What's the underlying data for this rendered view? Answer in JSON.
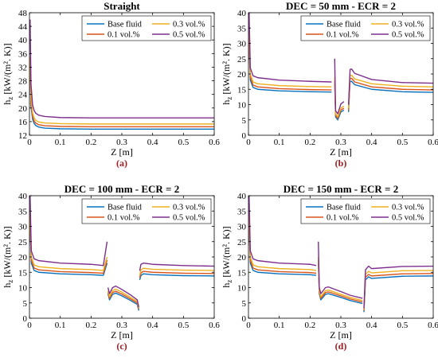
{
  "colors": {
    "base": "#0a72bd",
    "v01": "#d9541a",
    "v03": "#edb120",
    "v05": "#7e2f8e",
    "panel_label": "#a3191e"
  },
  "chart_data": [
    {
      "type": "line",
      "title": "Straight",
      "panel_label": "(a)",
      "xlabel": "Z [m]",
      "ylabel": "h_z [kW/(m². K)]",
      "xlim": [
        0,
        0.6
      ],
      "ylim": [
        12,
        48
      ],
      "xticks": [
        "0",
        "0.1",
        "0.2",
        "0.3",
        "0.4",
        "0.5",
        "0.6"
      ],
      "yticks": [
        "12",
        "16",
        "20",
        "24",
        "28",
        "32",
        "36",
        "40",
        "44",
        "48"
      ],
      "legend_position": "top-right",
      "series": [
        {
          "name": "Base fluid",
          "color_key": "base",
          "x": [
            0.002,
            0.005,
            0.01,
            0.015,
            0.02,
            0.03,
            0.05,
            0.1,
            0.2,
            0.3,
            0.4,
            0.5,
            0.6
          ],
          "y": [
            30,
            20.5,
            16.8,
            15.5,
            14.9,
            14.4,
            14.1,
            13.9,
            13.8,
            13.8,
            13.8,
            13.8,
            13.8
          ]
        },
        {
          "name": "0.1 vol.%",
          "color_key": "v01",
          "x": [
            0.002,
            0.005,
            0.01,
            0.015,
            0.02,
            0.03,
            0.05,
            0.1,
            0.2,
            0.3,
            0.4,
            0.5,
            0.6
          ],
          "y": [
            32,
            21.5,
            17.6,
            16.2,
            15.6,
            15.1,
            14.8,
            14.6,
            14.5,
            14.5,
            14.5,
            14.5,
            14.5
          ]
        },
        {
          "name": "0.3 vol.%",
          "color_key": "v03",
          "x": [
            0.002,
            0.005,
            0.01,
            0.015,
            0.02,
            0.03,
            0.05,
            0.1,
            0.2,
            0.3,
            0.4,
            0.5,
            0.6
          ],
          "y": [
            35,
            23,
            18.6,
            17.1,
            16.4,
            15.9,
            15.6,
            15.4,
            15.3,
            15.3,
            15.3,
            15.3,
            15.3
          ]
        },
        {
          "name": "0.5 vol.%",
          "color_key": "v05",
          "x": [
            0.002,
            0.005,
            0.01,
            0.015,
            0.02,
            0.03,
            0.05,
            0.1,
            0.2,
            0.3,
            0.4,
            0.5,
            0.6
          ],
          "y": [
            46,
            27,
            21,
            19.3,
            18.5,
            17.9,
            17.5,
            17.2,
            17.1,
            17.1,
            17.1,
            17.1,
            17.1
          ]
        }
      ]
    },
    {
      "type": "line",
      "title": "DEC = 50 mm - ECR = 2",
      "panel_label": "(b)",
      "xlabel": "Z [m]",
      "ylabel": "h_z [kW/(m². K)]",
      "xlim": [
        0,
        0.6
      ],
      "ylim": [
        0,
        40
      ],
      "xticks": [
        "0",
        "0.1",
        "0.2",
        "0.3",
        "0.4",
        "0.5",
        "0.6"
      ],
      "yticks": [
        "0",
        "5",
        "10",
        "15",
        "20",
        "25",
        "30",
        "35",
        "40"
      ],
      "legend_position": "top-right",
      "series": [
        {
          "name": "Base fluid",
          "color_key": "base",
          "x": [
            0.002,
            0.006,
            0.015,
            0.03,
            0.1,
            0.2,
            0.27,
            0.28,
            0.283,
            0.29,
            0.3,
            0.31,
            0.325,
            0.33,
            0.335,
            0.345,
            0.4,
            0.5,
            0.6
          ],
          "y": [
            30,
            18,
            15.6,
            15,
            14.5,
            14.2,
            14.1,
            17,
            6,
            5,
            7.6,
            8.2,
            7.6,
            17.5,
            17.6,
            16.5,
            15,
            14.2,
            14
          ],
          "gaps": [
            7,
            12
          ]
        },
        {
          "name": "0.1 vol.%",
          "color_key": "v01",
          "x": [
            0.002,
            0.006,
            0.015,
            0.03,
            0.1,
            0.2,
            0.27,
            0.28,
            0.283,
            0.29,
            0.3,
            0.31,
            0.325,
            0.33,
            0.335,
            0.345,
            0.4,
            0.5,
            0.6
          ],
          "y": [
            32,
            19,
            16.4,
            15.8,
            15.2,
            14.9,
            14.8,
            18,
            6.5,
            5.5,
            8.2,
            8.8,
            8.2,
            18.5,
            18.6,
            17.4,
            15.8,
            15,
            14.8
          ],
          "gaps": [
            7,
            12
          ]
        },
        {
          "name": "0.3 vol.%",
          "color_key": "v03",
          "x": [
            0.002,
            0.006,
            0.015,
            0.03,
            0.1,
            0.2,
            0.27,
            0.28,
            0.283,
            0.29,
            0.3,
            0.31,
            0.325,
            0.33,
            0.335,
            0.345,
            0.4,
            0.5,
            0.6
          ],
          "y": [
            34,
            20,
            17.4,
            16.8,
            16.2,
            15.9,
            15.8,
            19,
            7,
            6,
            8.8,
            9.5,
            8.8,
            19.5,
            19.6,
            18.4,
            16.8,
            16,
            15.8
          ],
          "gaps": [
            7,
            12
          ]
        },
        {
          "name": "0.5 vol.%",
          "color_key": "v05",
          "x": [
            0.002,
            0.006,
            0.015,
            0.03,
            0.1,
            0.2,
            0.27,
            0.28,
            0.283,
            0.29,
            0.3,
            0.31,
            0.325,
            0.33,
            0.335,
            0.345,
            0.4,
            0.5,
            0.6
          ],
          "y": [
            40,
            22,
            19.4,
            18.8,
            18,
            17.6,
            17.4,
            25,
            8,
            7,
            10.2,
            11,
            10,
            21.5,
            21.6,
            20.2,
            18.2,
            17.2,
            17
          ],
          "gaps": [
            7,
            12
          ]
        }
      ]
    },
    {
      "type": "line",
      "title": "DEC = 100 mm - ECR = 2",
      "panel_label": "(c)",
      "xlabel": "Z [m]",
      "ylabel": "h_z [kW/(m². K)]",
      "xlim": [
        0,
        0.6
      ],
      "ylim": [
        0,
        40
      ],
      "xticks": [
        "0",
        "0.1",
        "0.2",
        "0.3",
        "0.4",
        "0.5",
        "0.6"
      ],
      "yticks": [
        "0",
        "5",
        "10",
        "15",
        "20",
        "25",
        "30",
        "35",
        "40"
      ],
      "legend_position": "top-right",
      "series": [
        {
          "name": "Base fluid",
          "color_key": "base",
          "x": [
            0.002,
            0.006,
            0.015,
            0.03,
            0.1,
            0.2,
            0.24,
            0.252,
            0.255,
            0.26,
            0.27,
            0.28,
            0.3,
            0.33,
            0.35,
            0.355,
            0.358,
            0.362,
            0.37,
            0.4,
            0.5,
            0.6
          ],
          "y": [
            30,
            18,
            15.6,
            15,
            14.5,
            14.2,
            14,
            18,
            8,
            6,
            7.8,
            8.2,
            7.3,
            5.7,
            4.5,
            2.5,
            12.5,
            14,
            14.5,
            14.2,
            13.9,
            13.8
          ],
          "gaps": [
            8,
            16
          ]
        },
        {
          "name": "0.1 vol.%",
          "color_key": "v01",
          "x": [
            0.002,
            0.006,
            0.015,
            0.03,
            0.1,
            0.2,
            0.24,
            0.252,
            0.255,
            0.26,
            0.27,
            0.28,
            0.3,
            0.33,
            0.35,
            0.355,
            0.358,
            0.362,
            0.37,
            0.4,
            0.5,
            0.6
          ],
          "y": [
            32,
            19,
            16.4,
            15.8,
            15.2,
            14.9,
            14.7,
            19,
            8.5,
            6.5,
            8.4,
            8.8,
            7.9,
            6.2,
            5,
            3,
            13.2,
            14.8,
            15.3,
            15,
            14.7,
            14.6
          ],
          "gaps": [
            8,
            16
          ]
        },
        {
          "name": "0.3 vol.%",
          "color_key": "v03",
          "x": [
            0.002,
            0.006,
            0.015,
            0.03,
            0.1,
            0.2,
            0.24,
            0.252,
            0.255,
            0.26,
            0.27,
            0.28,
            0.3,
            0.33,
            0.35,
            0.355,
            0.358,
            0.362,
            0.37,
            0.4,
            0.5,
            0.6
          ],
          "y": [
            34,
            20,
            17.4,
            16.8,
            16.2,
            15.9,
            15.6,
            20,
            9,
            7,
            9,
            9.5,
            8.5,
            6.7,
            5.5,
            3.3,
            14,
            15.8,
            16.3,
            16,
            15.7,
            15.6
          ],
          "gaps": [
            8,
            16
          ]
        },
        {
          "name": "0.5 vol.%",
          "color_key": "v05",
          "x": [
            0.002,
            0.006,
            0.015,
            0.03,
            0.1,
            0.2,
            0.24,
            0.252,
            0.255,
            0.26,
            0.27,
            0.28,
            0.3,
            0.33,
            0.35,
            0.355,
            0.358,
            0.362,
            0.37,
            0.4,
            0.5,
            0.6
          ],
          "y": [
            40,
            22,
            19.4,
            18.8,
            18,
            17.6,
            17.2,
            25,
            10,
            8,
            10,
            10.5,
            9.4,
            7.5,
            6,
            3.6,
            15.5,
            17.6,
            18,
            17.6,
            17.2,
            17
          ],
          "gaps": [
            8,
            16
          ]
        }
      ]
    },
    {
      "type": "line",
      "title": "DEC = 150 mm - ECR = 2",
      "panel_label": "(d)",
      "xlabel": "Z [m]",
      "ylabel": "h_z [kW/(m². K)]",
      "xlim": [
        0,
        0.6
      ],
      "ylim": [
        0,
        40
      ],
      "xticks": [
        "0",
        "0.1",
        "0.2",
        "0.3",
        "0.4",
        "0.5",
        "0.6"
      ],
      "yticks": [
        "0",
        "5",
        "10",
        "15",
        "20",
        "25",
        "30",
        "35",
        "40"
      ],
      "legend_position": "top-right",
      "series": [
        {
          "name": "Base fluid",
          "color_key": "base",
          "x": [
            0.002,
            0.006,
            0.015,
            0.03,
            0.1,
            0.2,
            0.22,
            0.227,
            0.23,
            0.235,
            0.25,
            0.26,
            0.3,
            0.33,
            0.37,
            0.375,
            0.38,
            0.39,
            0.4,
            0.5,
            0.6
          ],
          "y": [
            30,
            18,
            15.6,
            15,
            14.5,
            14.2,
            14,
            18,
            8,
            6,
            7.8,
            8,
            6.8,
            5.8,
            4.8,
            2,
            12.5,
            13.5,
            13,
            13.7,
            13.8
          ],
          "gaps": [
            7,
            15
          ]
        },
        {
          "name": "0.1 vol.%",
          "color_key": "v01",
          "x": [
            0.002,
            0.006,
            0.015,
            0.03,
            0.1,
            0.2,
            0.22,
            0.227,
            0.23,
            0.235,
            0.25,
            0.26,
            0.3,
            0.33,
            0.37,
            0.375,
            0.38,
            0.39,
            0.4,
            0.5,
            0.6
          ],
          "y": [
            32,
            19,
            16.4,
            15.8,
            15.2,
            14.9,
            14.7,
            19,
            8.5,
            6.5,
            8.4,
            8.6,
            7.3,
            6.3,
            5.3,
            2.5,
            13.3,
            14.3,
            13.8,
            14.5,
            14.6
          ],
          "gaps": [
            7,
            15
          ]
        },
        {
          "name": "0.3 vol.%",
          "color_key": "v03",
          "x": [
            0.002,
            0.006,
            0.015,
            0.03,
            0.1,
            0.2,
            0.22,
            0.227,
            0.23,
            0.235,
            0.25,
            0.26,
            0.3,
            0.33,
            0.37,
            0.375,
            0.38,
            0.39,
            0.4,
            0.5,
            0.6
          ],
          "y": [
            34,
            20,
            17.4,
            16.8,
            16.2,
            15.9,
            15.6,
            20,
            9,
            7,
            9,
            9.2,
            7.8,
            6.8,
            5.8,
            2.8,
            14.3,
            15.3,
            14.8,
            15.5,
            15.6
          ],
          "gaps": [
            7,
            15
          ]
        },
        {
          "name": "0.5 vol.%",
          "color_key": "v05",
          "x": [
            0.002,
            0.006,
            0.015,
            0.03,
            0.1,
            0.2,
            0.22,
            0.227,
            0.23,
            0.235,
            0.25,
            0.26,
            0.3,
            0.33,
            0.37,
            0.375,
            0.38,
            0.39,
            0.4,
            0.5,
            0.6
          ],
          "y": [
            40,
            22,
            19.4,
            18.8,
            18,
            17.6,
            17.2,
            25,
            10,
            8,
            10,
            10.2,
            8.7,
            7.5,
            6.5,
            3.2,
            15.8,
            17,
            16.2,
            16.9,
            17
          ],
          "gaps": [
            7,
            15
          ]
        }
      ]
    }
  ]
}
